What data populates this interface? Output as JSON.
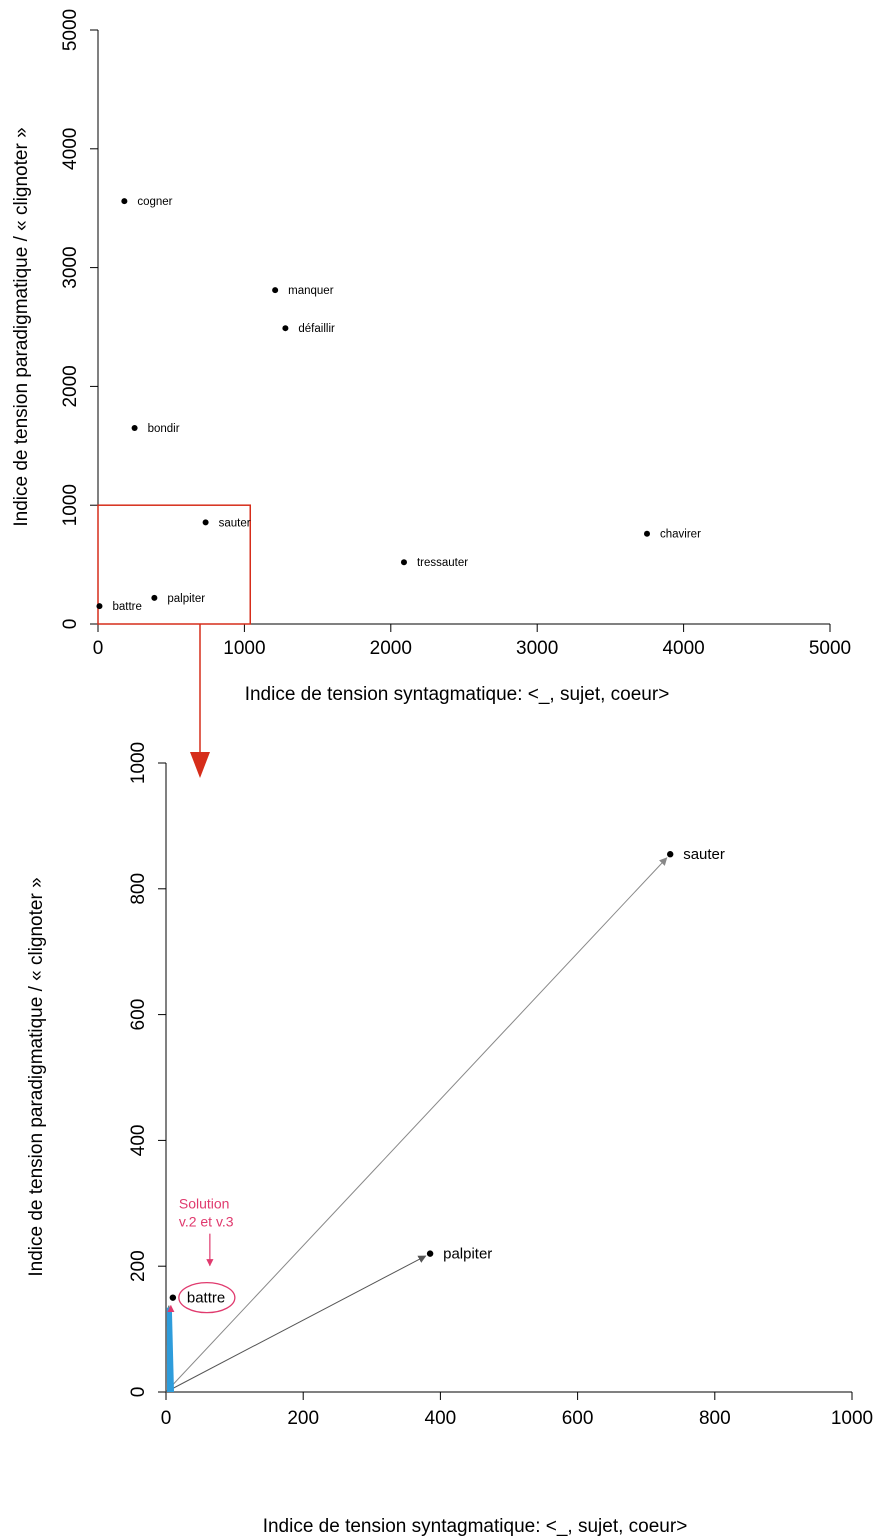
{
  "chart_data": [
    {
      "type": "scatter",
      "xlabel": "Indice de tension syntagmatique: <_, sujet, coeur>",
      "ylabel": "Indice de tension paradigmatique / « clignoter »",
      "xlim": [
        0,
        5000
      ],
      "ylim": [
        0,
        5000
      ],
      "xticks": [
        "0",
        "1000",
        "2000",
        "3000",
        "4000",
        "5000"
      ],
      "yticks": [
        "0",
        "1000",
        "2000",
        "3000",
        "4000",
        "5000"
      ],
      "grid": false,
      "points": [
        {
          "label": "cogner",
          "x": 180,
          "y": 3560
        },
        {
          "label": "manquer",
          "x": 1210,
          "y": 2810
        },
        {
          "label": "défaillir",
          "x": 1280,
          "y": 2490
        },
        {
          "label": "bondir",
          "x": 250,
          "y": 1650
        },
        {
          "label": "sauter",
          "x": 735,
          "y": 855
        },
        {
          "label": "chavirer",
          "x": 3750,
          "y": 760
        },
        {
          "label": "tressauter",
          "x": 2090,
          "y": 520
        },
        {
          "label": "palpiter",
          "x": 385,
          "y": 220
        },
        {
          "label": "battre",
          "x": 10,
          "y": 150
        }
      ],
      "highlight_region": {
        "x": [
          0,
          1040
        ],
        "y": [
          0,
          1000
        ],
        "color": "#d62d1a"
      }
    },
    {
      "type": "scatter",
      "xlabel": "Indice de tension syntagmatique: <_, sujet, coeur>",
      "ylabel": "Indice de tension paradigmatique / « clignoter »",
      "xlim": [
        0,
        1000
      ],
      "ylim": [
        0,
        1000
      ],
      "xticks": [
        "0",
        "200",
        "400",
        "600",
        "800",
        "1000"
      ],
      "yticks": [
        "0",
        "200",
        "400",
        "600",
        "800",
        "1000"
      ],
      "grid": false,
      "points": [
        {
          "label": "sauter",
          "x": 735,
          "y": 855
        },
        {
          "label": "palpiter",
          "x": 385,
          "y": 220
        },
        {
          "label": "battre",
          "x": 10,
          "y": 150
        }
      ],
      "arrows": [
        {
          "to": "sauter",
          "from_x": 0,
          "from_y": 0,
          "color": "#888888"
        },
        {
          "to": "palpiter",
          "from_x": 0,
          "from_y": 0,
          "color": "#555555"
        },
        {
          "to": "battre",
          "from_x": 0,
          "from_y": 0,
          "color": "#2e9cdb"
        }
      ],
      "annotation": {
        "lines": [
          "Solution",
          "v.2 et v.3"
        ],
        "target": "battre",
        "color": "#e03a6e"
      }
    }
  ],
  "colors": {
    "zoom_box": "#d62d1a",
    "zoom_arrow": "#d62d1a",
    "annotation": "#e03a6e",
    "vector_battre": "#2e9cdb",
    "vector_sauter": "#888888",
    "vector_palpiter": "#555555"
  }
}
